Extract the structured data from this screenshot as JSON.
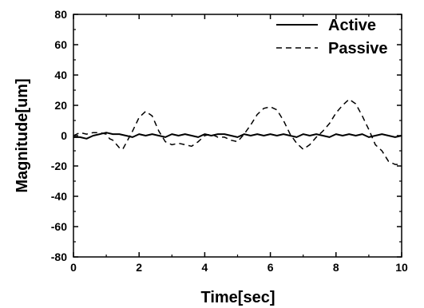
{
  "chart_data": {
    "type": "line",
    "title": "",
    "xlabel": "Time[sec]",
    "ylabel": "Magnitude[um]",
    "xlim": [
      0,
      10
    ],
    "ylim": [
      -80,
      80
    ],
    "xticks": [
      0,
      2,
      4,
      6,
      8,
      10
    ],
    "yticks": [
      -80,
      -60,
      -40,
      -20,
      0,
      20,
      40,
      60,
      80
    ],
    "grid": false,
    "legend_position": "top-right",
    "series": [
      {
        "name": "Active",
        "line_style": "solid",
        "color": "#000000",
        "x": [
          0,
          0.2,
          0.4,
          0.6,
          0.8,
          1.0,
          1.2,
          1.4,
          1.6,
          1.8,
          2.0,
          2.2,
          2.4,
          2.6,
          2.8,
          3.0,
          3.2,
          3.4,
          3.6,
          3.8,
          4.0,
          4.2,
          4.4,
          4.6,
          4.8,
          5.0,
          5.2,
          5.4,
          5.6,
          5.8,
          6.0,
          6.2,
          6.4,
          6.6,
          6.8,
          7.0,
          7.2,
          7.4,
          7.6,
          7.8,
          8.0,
          8.2,
          8.4,
          8.6,
          8.8,
          9.0,
          9.2,
          9.4,
          9.6,
          9.8,
          10.0
        ],
        "y": [
          -1,
          -1,
          -2,
          0,
          1,
          2,
          1,
          1,
          0,
          -1,
          1,
          0,
          1,
          0,
          -1,
          1,
          0,
          1,
          0,
          -1,
          1,
          0,
          1,
          1,
          0,
          -1,
          1,
          0,
          1,
          0,
          1,
          0,
          1,
          0,
          -1,
          1,
          0,
          1,
          0,
          -1,
          1,
          0,
          1,
          0,
          1,
          -1,
          0,
          1,
          0,
          -1,
          0
        ]
      },
      {
        "name": "Passive",
        "line_style": "dashed",
        "color": "#000000",
        "x": [
          0,
          0.2,
          0.4,
          0.6,
          0.8,
          1.0,
          1.1,
          1.2,
          1.4,
          1.5,
          1.6,
          1.8,
          2.0,
          2.2,
          2.4,
          2.6,
          2.8,
          3.0,
          3.2,
          3.4,
          3.6,
          3.8,
          4.0,
          4.2,
          4.4,
          4.6,
          4.8,
          5.0,
          5.2,
          5.4,
          5.6,
          5.8,
          6.0,
          6.2,
          6.4,
          6.6,
          6.8,
          7.0,
          7.2,
          7.4,
          7.6,
          7.8,
          8.0,
          8.2,
          8.4,
          8.6,
          8.8,
          9.0,
          9.2,
          9.4,
          9.6,
          9.8,
          10.0
        ],
        "y": [
          0,
          2,
          1,
          2,
          2,
          1,
          -2,
          -3,
          -8,
          -9,
          -5,
          3,
          12,
          16,
          13,
          3,
          -4,
          -6,
          -5,
          -6,
          -7,
          -4,
          0,
          1,
          -1,
          -1,
          -3,
          -4,
          1,
          7,
          14,
          18,
          19,
          17,
          10,
          1,
          -5,
          -9,
          -6,
          -1,
          3,
          8,
          15,
          20,
          24,
          21,
          13,
          4,
          -6,
          -10,
          -17,
          -19,
          -19
        ]
      }
    ]
  }
}
